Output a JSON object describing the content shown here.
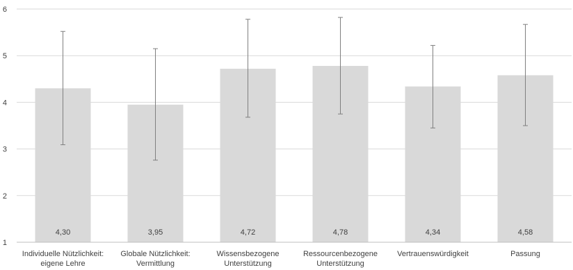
{
  "chart_data": {
    "type": "bar",
    "categories": [
      [
        "Individuelle Nützlichkeit:",
        "eigene Lehre"
      ],
      [
        "Globale Nützlichkeit:",
        "Vermittlung"
      ],
      [
        "Wissensbezogene",
        "Unterstützung"
      ],
      [
        "Ressourcenbezogene",
        "Unterstützung"
      ],
      [
        "Vertrauenswürdigkeit"
      ],
      [
        "Passung"
      ]
    ],
    "values": [
      4.3,
      3.95,
      4.72,
      4.78,
      4.34,
      4.58
    ],
    "data_labels": [
      "4,30",
      "3,95",
      "4,72",
      "4,78",
      "4,34",
      "4,58"
    ],
    "error_bars": [
      {
        "low": 3.09,
        "high": 5.52
      },
      {
        "low": 2.76,
        "high": 5.15
      },
      {
        "low": 3.68,
        "high": 5.78
      },
      {
        "low": 3.75,
        "high": 5.82
      },
      {
        "low": 3.45,
        "high": 5.22
      },
      {
        "low": 3.5,
        "high": 5.67
      }
    ],
    "ylim": [
      1,
      6
    ],
    "yticks": [
      "1",
      "2",
      "3",
      "4",
      "5",
      "6"
    ],
    "grid": true,
    "colors": {
      "bar": "#d9d9d9",
      "error": "#7f7f7f",
      "grid": "#d9d9d9",
      "axis": "#bfbfbf"
    }
  }
}
